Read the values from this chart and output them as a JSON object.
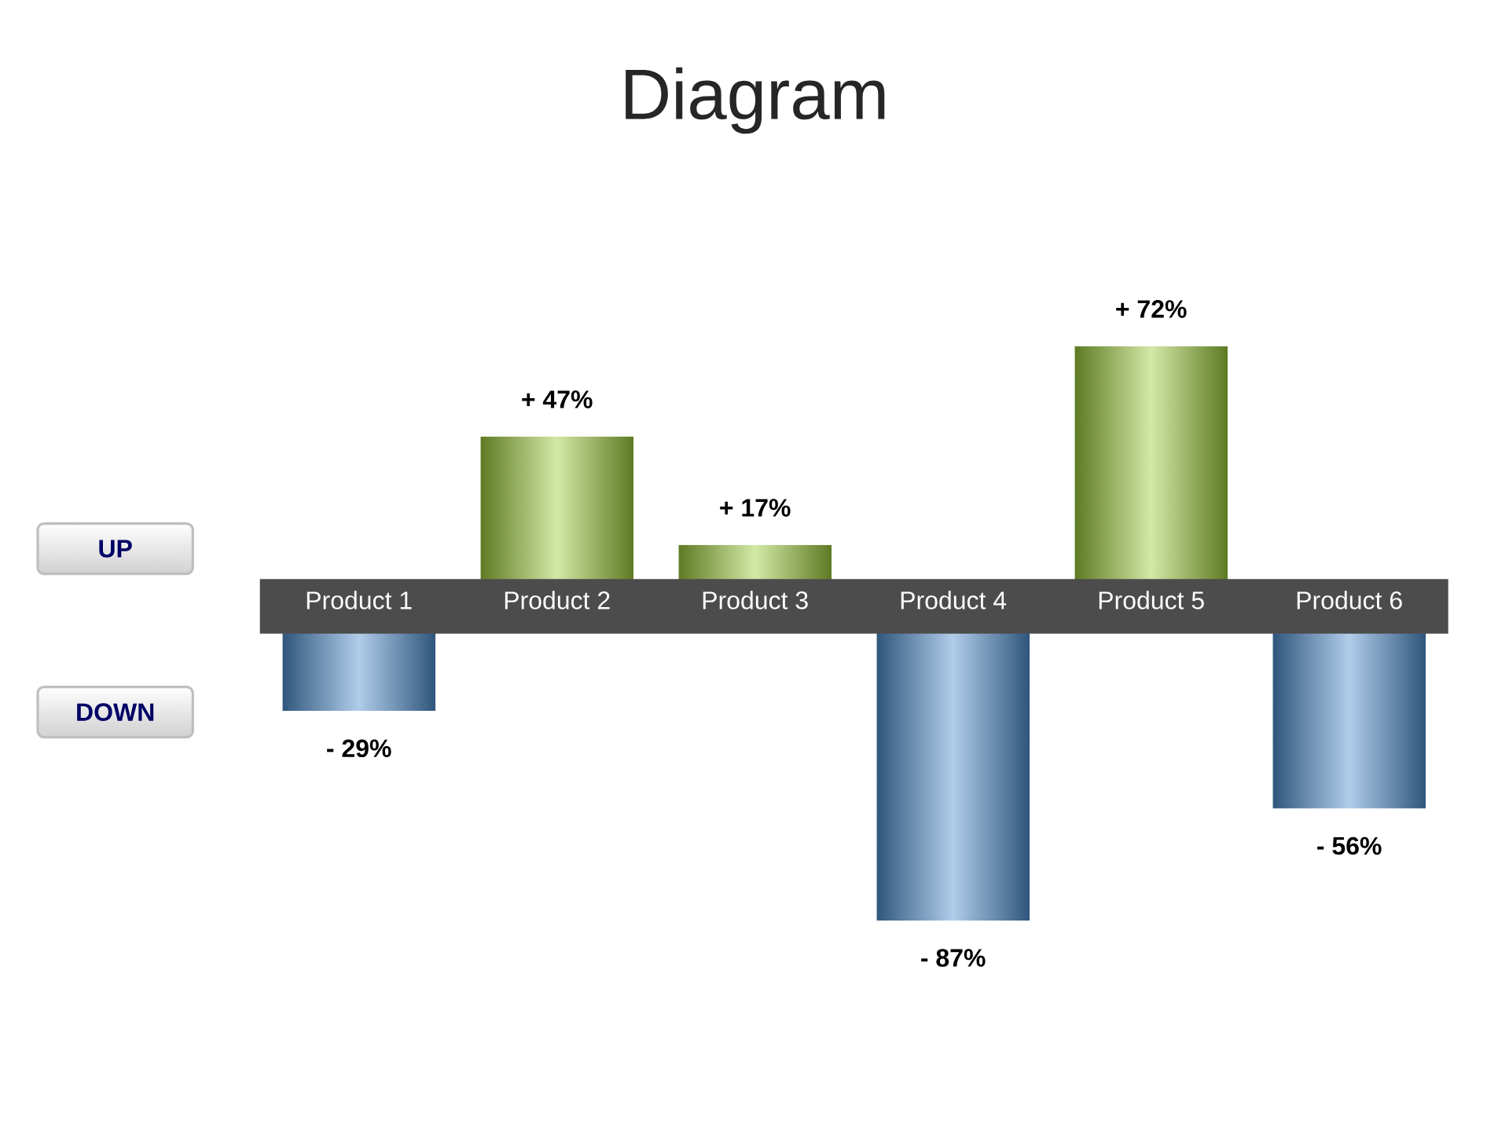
{
  "chart_data": {
    "type": "bar",
    "title": "Diagram",
    "categories": [
      "Product 1",
      "Product 2",
      "Product 3",
      "Product 4",
      "Product 5",
      "Product 6"
    ],
    "values": [
      -29,
      47,
      17,
      -87,
      72,
      -56
    ],
    "colors": [
      "#4f8fcf",
      "#9ccc3a",
      "#9ccc3a",
      "#4f8fcf",
      "#9ccc3a",
      "#4f8fcf"
    ],
    "value_labels": [
      "- 29%",
      "+ 47%",
      "+ 17%",
      "- 87%",
      "+ 72%",
      "- 56%"
    ],
    "annotations": [
      "UP",
      "DOWN"
    ]
  }
}
